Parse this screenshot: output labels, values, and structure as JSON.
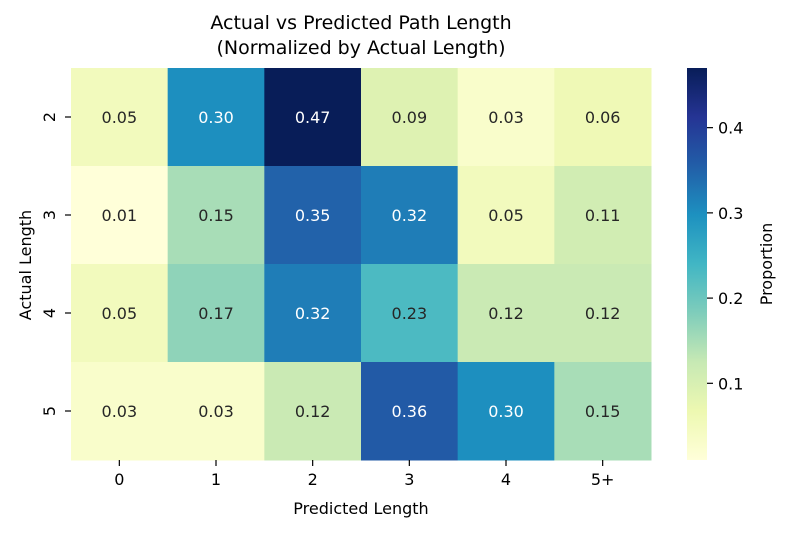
{
  "chart_data": {
    "type": "heatmap",
    "title": [
      "Actual vs Predicted Path Length",
      "(Normalized by Actual Length)"
    ],
    "xlabel": "Predicted Length",
    "ylabel": "Actual Length",
    "x_categories": [
      "0",
      "1",
      "2",
      "3",
      "4",
      "5+"
    ],
    "y_categories": [
      "2",
      "3",
      "4",
      "5"
    ],
    "values": [
      [
        0.05,
        0.3,
        0.47,
        0.09,
        0.03,
        0.06
      ],
      [
        0.01,
        0.15,
        0.35,
        0.32,
        0.05,
        0.11
      ],
      [
        0.05,
        0.17,
        0.32,
        0.23,
        0.12,
        0.12
      ],
      [
        0.03,
        0.03,
        0.12,
        0.36,
        0.3,
        0.15
      ]
    ],
    "value_format": "0.00",
    "colormap": "YlGnBu",
    "colorbar": {
      "label": "Proportion",
      "range": [
        0.01,
        0.47
      ],
      "ticks": [
        "0.1",
        "0.2",
        "0.3",
        "0.4"
      ],
      "tick_values": [
        0.1,
        0.2,
        0.3,
        0.4
      ]
    }
  }
}
